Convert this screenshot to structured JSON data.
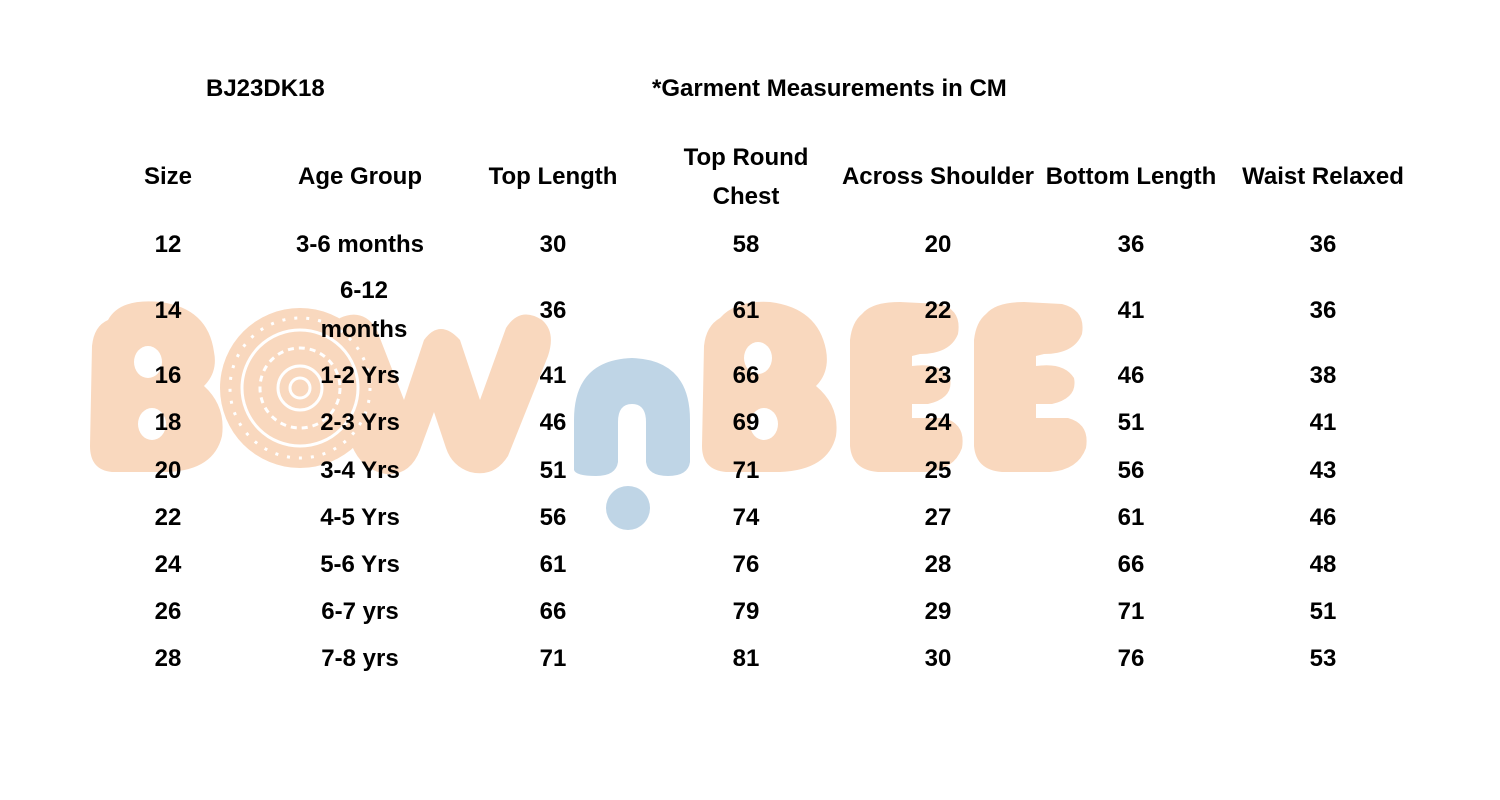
{
  "style_code": "BJ23DK18",
  "note": "*Garment Measurements in CM",
  "watermark": {
    "logo_text": "BOWnBEE",
    "colors": {
      "peach": "#f9d8be",
      "blue": "#bfd5e6"
    }
  },
  "table": {
    "headers": [
      "Size",
      "Age Group",
      "Top Length",
      "Top Round Chest",
      "Across Shoulder",
      "Bottom Length",
      "Waist Relaxed"
    ],
    "rows": [
      [
        "12",
        "3-6 months",
        "30",
        "58",
        "20",
        "36",
        "36"
      ],
      [
        "14",
        "6-12 months",
        "36",
        "61",
        "22",
        "41",
        "36"
      ],
      [
        "16",
        "1-2 Yrs",
        "41",
        "66",
        "23",
        "46",
        "38"
      ],
      [
        "18",
        "2-3 Yrs",
        "46",
        "69",
        "24",
        "51",
        "41"
      ],
      [
        "20",
        "3-4 Yrs",
        "51",
        "71",
        "25",
        "56",
        "43"
      ],
      [
        "22",
        "4-5 Yrs",
        "56",
        "74",
        "27",
        "61",
        "46"
      ],
      [
        "24",
        "5-6 Yrs",
        "61",
        "76",
        "28",
        "66",
        "48"
      ],
      [
        "26",
        "6-7 yrs",
        "66",
        "79",
        "29",
        "71",
        "51"
      ],
      [
        "28",
        "7-8 yrs",
        "71",
        "81",
        "30",
        "76",
        "53"
      ]
    ]
  }
}
